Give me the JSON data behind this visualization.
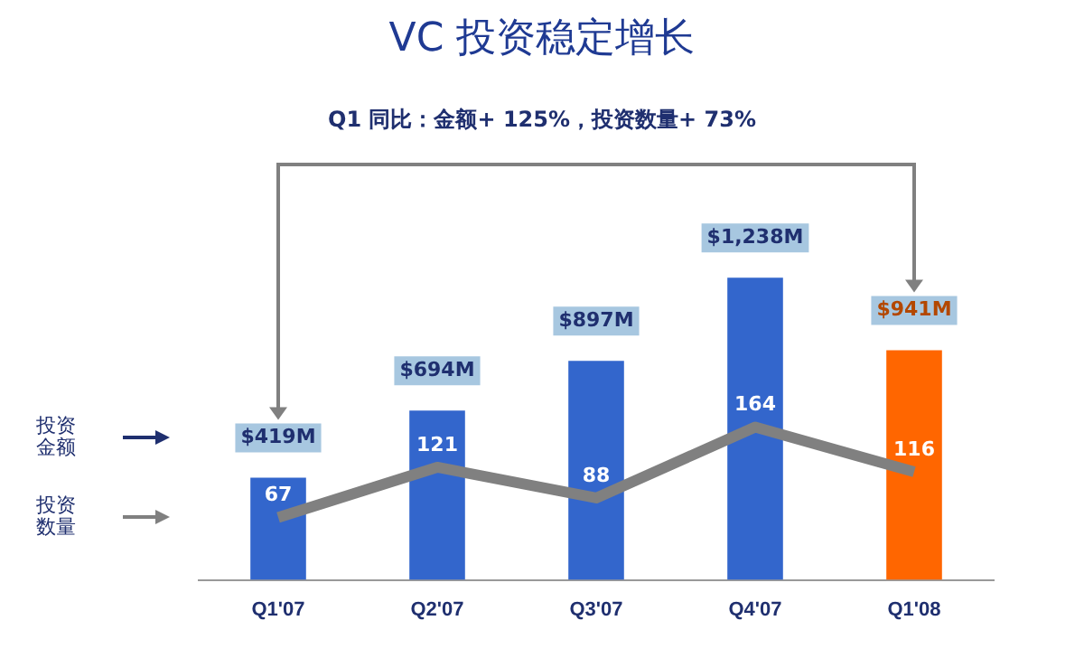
{
  "chart_data": {
    "type": "bar",
    "title": "VC 投资稳定增长",
    "subtitle": "Q1 同比：金额+ 125%，投资数量+ 73%",
    "categories": [
      "Q1'07",
      "Q2'07",
      "Q3'07",
      "Q4'07",
      "Q1'08"
    ],
    "series": [
      {
        "colors": [
          "#3366cc",
          "#3366cc",
          "#3366cc",
          "#3366cc",
          "#ff6600"
        ],
        "values": [
          419,
          694,
          897,
          1238,
          941
        ],
        "value_labels": [
          "$419M",
          "$694M",
          "$897M",
          "$1,238M",
          "$941M"
        ]
      },
      {
        "type": "line",
        "axis": "y2",
        "color": "#808080",
        "values": [
          67,
          121,
          88,
          164,
          116
        ],
        "value_labels": [
          "67",
          "121",
          "88",
          "164",
          "116"
        ]
      }
    ],
    "annotations": [
      "投资金额",
      "投资数量"
    ],
    "ylim": [
      0,
      1450
    ],
    "y2lim": [
      0,
      380
    ],
    "tick_labels": "x",
    "grid": false,
    "legend": false,
    "marker": "none"
  }
}
